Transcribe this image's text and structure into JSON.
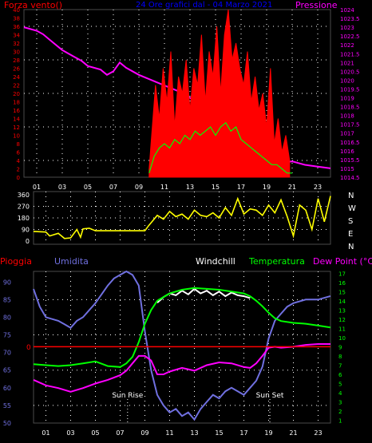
{
  "colors": {
    "background": "#000000",
    "grid": "#ffffff",
    "axis": "#4a4a4a",
    "wind_speed": "#ff0000",
    "wind_avg": "#00ff00",
    "pressure": "#ff00ff",
    "wind_dir": "#ffff00",
    "dew_point": "#ff00ff",
    "humidity": "#7070e0",
    "windchill": "#ffffff",
    "temperature": "#00ff00",
    "rain": "#ff0000",
    "title": "#0000ff"
  },
  "chart_data": [
    {
      "type": "line",
      "title": "24 Ore grafici dal - 04 Marzo 2021",
      "left_label": "Forza vento()",
      "right_label": "Pressione",
      "x_ticks": [
        "01",
        "03",
        "05",
        "07",
        "09",
        "11",
        "13",
        "15",
        "17",
        "19",
        "21",
        "23"
      ],
      "x_range": [
        0,
        24
      ],
      "y_left": {
        "ticks": [
          "0",
          "2",
          "4",
          "6",
          "8",
          "10",
          "12",
          "14",
          "16",
          "18",
          "20",
          "22",
          "24",
          "26",
          "28",
          "30",
          "32",
          "34",
          "36",
          "38",
          "40"
        ],
        "range": [
          0,
          40
        ]
      },
      "y_right": {
        "ticks": [
          "1014.5",
          "1015",
          "1015.5",
          "1016",
          "1016.5",
          "1017",
          "1017.5",
          "1018",
          "1018.5",
          "1019",
          "1019.5",
          "1020",
          "1020.5",
          "1021",
          "1021.5",
          "1022",
          "1022.5",
          "1023",
          "1023.5",
          "1024"
        ],
        "range": [
          1014.5,
          1024
        ]
      },
      "grid": true,
      "series": [
        {
          "key": "pressure",
          "axis": "right",
          "x": [
            0,
            1,
            1.5,
            2,
            3,
            4,
            4.5,
            5,
            6,
            6.5,
            7,
            7.5,
            8,
            9,
            10,
            11,
            12,
            13,
            14,
            15,
            16,
            17,
            18,
            19,
            20,
            21,
            22,
            23,
            24
          ],
          "y": [
            1023,
            1022.8,
            1022.6,
            1022.3,
            1021.7,
            1021.3,
            1021.1,
            1020.8,
            1020.6,
            1020.3,
            1020.5,
            1021,
            1020.7,
            1020.3,
            1020,
            1019.7,
            1019.4,
            1019,
            1018.5,
            1017.8,
            1017.2,
            1016.6,
            1016,
            1015.6,
            1015.3,
            1015.4,
            1015.2,
            1015.1,
            1015
          ]
        },
        {
          "key": "wind_speed",
          "axis": "left",
          "x": [
            9.8,
            10,
            10.3,
            10.6,
            10.9,
            11.2,
            11.5,
            11.8,
            12.1,
            12.4,
            12.7,
            13,
            13.3,
            13.6,
            13.9,
            14.2,
            14.5,
            14.8,
            15.1,
            15.4,
            15.7,
            16,
            16.3,
            16.6,
            16.9,
            17.2,
            17.5,
            17.8,
            18.1,
            18.4,
            18.7,
            19,
            19.3,
            19.6,
            19.9,
            20.2,
            20.5,
            20.8
          ],
          "y": [
            2,
            10,
            22,
            14,
            26,
            18,
            30,
            12,
            24,
            20,
            28,
            16,
            26,
            22,
            34,
            18,
            30,
            24,
            36,
            20,
            34,
            40,
            28,
            32,
            26,
            22,
            30,
            18,
            24,
            16,
            20,
            12,
            26,
            8,
            14,
            6,
            10,
            4
          ]
        },
        {
          "key": "wind_avg",
          "axis": "left",
          "x": [
            9.8,
            10.2,
            10.6,
            11,
            11.4,
            11.8,
            12.2,
            12.6,
            13,
            13.4,
            13.8,
            14.2,
            14.6,
            15,
            15.4,
            15.8,
            16.2,
            16.6,
            17,
            17.4,
            17.8,
            18.2,
            18.6,
            19,
            19.4,
            19.8,
            20.2,
            20.6,
            21
          ],
          "y": [
            1,
            5,
            7,
            8,
            7,
            9,
            8,
            10,
            9,
            11,
            10,
            11,
            12,
            10,
            12,
            13,
            11,
            12,
            9,
            8,
            7,
            6,
            5,
            4,
            3,
            3,
            2,
            1,
            1
          ]
        }
      ]
    },
    {
      "type": "line",
      "x_range": [
        0,
        24
      ],
      "y_ticks": [
        "0",
        "90",
        "180",
        "270",
        "360"
      ],
      "y_range": [
        0,
        360
      ],
      "direction_labels": [
        "N",
        "W",
        "S",
        "E",
        "N"
      ],
      "series": [
        {
          "key": "wind_dir",
          "x": [
            0,
            1,
            1.3,
            2,
            2.5,
            3,
            3.5,
            3.8,
            4,
            4.5,
            5,
            6,
            7,
            8,
            9,
            9.3,
            10,
            10.5,
            11,
            11.5,
            12,
            12.5,
            13,
            13.5,
            14,
            14.5,
            15,
            15.5,
            16,
            16.5,
            17,
            17.5,
            18,
            18.5,
            19,
            19.5,
            20,
            20.5,
            21,
            21.5,
            22,
            22.5,
            23,
            23.5,
            24
          ],
          "y": [
            75,
            70,
            40,
            60,
            20,
            25,
            90,
            30,
            95,
            100,
            80,
            80,
            80,
            80,
            80,
            120,
            200,
            170,
            230,
            190,
            210,
            170,
            240,
            200,
            190,
            220,
            180,
            260,
            200,
            330,
            210,
            250,
            240,
            200,
            280,
            220,
            320,
            190,
            40,
            280,
            240,
            90,
            330,
            150,
            350
          ]
        }
      ]
    },
    {
      "type": "line",
      "legend": [
        "Pioggia",
        "Umidita",
        "Windchill",
        "Temperatura",
        "Dew Point (°C)"
      ],
      "x_ticks": [
        "01",
        "03",
        "05",
        "07",
        "09",
        "11",
        "13",
        "15",
        "17",
        "19",
        "21",
        "23"
      ],
      "x_range": [
        0,
        24
      ],
      "y_left": {
        "ticks": [
          "50",
          "55",
          "60",
          "65",
          "70",
          "75",
          "80",
          "85",
          "90"
        ],
        "range": [
          50,
          93
        ]
      },
      "y_right": {
        "ticks": [
          "1",
          "2",
          "3",
          "4",
          "5",
          "6",
          "7",
          "8",
          "9",
          "10",
          "11",
          "12",
          "13",
          "14",
          "15",
          "16",
          "17"
        ],
        "range": [
          0.7,
          17.2
        ]
      },
      "rain_marker": "0",
      "annotations": [
        {
          "text": "Sun Rise",
          "x": 7.6
        },
        {
          "text": "Sun Set",
          "x": 19.1
        }
      ],
      "grid": true,
      "series": [
        {
          "key": "humidity",
          "axis": "left",
          "x": [
            0,
            0.5,
            1,
            2,
            2.5,
            3,
            3.5,
            4,
            5,
            6,
            6.5,
            7,
            7.5,
            8,
            8.5,
            9,
            9.5,
            10,
            10.5,
            11,
            11.5,
            12,
            12.5,
            13,
            13.5,
            14,
            14.5,
            15,
            15.5,
            16,
            16.5,
            17,
            17.5,
            18,
            18.5,
            19,
            19.5,
            20,
            20.5,
            21,
            22,
            23,
            24
          ],
          "y": [
            88,
            83,
            80,
            79,
            78,
            77,
            79,
            80,
            84,
            89,
            91,
            92,
            93,
            92,
            89,
            76,
            65,
            58,
            55,
            53,
            54,
            52,
            53,
            51,
            54,
            56,
            58,
            57,
            59,
            60,
            59,
            58,
            60,
            62,
            66,
            74,
            79,
            81,
            83,
            84,
            85,
            85,
            86
          ]
        },
        {
          "key": "windchill",
          "axis": "right",
          "x": [
            10,
            10.5,
            11,
            11.5,
            12,
            12.5,
            13,
            13.5,
            14,
            14.5,
            15,
            15.5,
            16,
            16.5,
            17,
            17.5
          ],
          "y": [
            13.8,
            14.4,
            14.8,
            14.6,
            15.1,
            14.7,
            15.3,
            14.8,
            15.1,
            14.6,
            15,
            14.5,
            14.9,
            14.6,
            14.5,
            14.3
          ]
        },
        {
          "key": "temperature",
          "axis": "right",
          "x": [
            0,
            1,
            2,
            3,
            4,
            5,
            6,
            7,
            7.5,
            8,
            8.5,
            9,
            9.5,
            10,
            11,
            12,
            13,
            14,
            15,
            16,
            17,
            17.5,
            18,
            18.5,
            19,
            19.5,
            20,
            21,
            22,
            23,
            24
          ],
          "y": [
            7.1,
            7,
            6.9,
            7,
            7.2,
            7.4,
            6.9,
            6.8,
            7.2,
            7.9,
            9.5,
            11.5,
            13,
            14,
            14.8,
            15.2,
            15.4,
            15.3,
            15.2,
            15,
            14.8,
            14.5,
            14,
            13.4,
            12.7,
            12.1,
            11.8,
            11.6,
            11.5,
            11.3,
            11.1
          ]
        },
        {
          "key": "dew_point",
          "axis": "right",
          "x": [
            0,
            1,
            2,
            3,
            4,
            5,
            6,
            7,
            7.5,
            8,
            8.5,
            9,
            9.5,
            10,
            10.5,
            11,
            12,
            13,
            14,
            15,
            16,
            17,
            17.5,
            18,
            18.5,
            19,
            19.5,
            20,
            21,
            22,
            23,
            24
          ],
          "y": [
            5.4,
            4.8,
            4.5,
            4.1,
            4.5,
            5,
            5.4,
            5.9,
            6.4,
            7.2,
            8,
            8,
            7.5,
            6,
            6,
            6.3,
            6.7,
            6.4,
            7,
            7.3,
            7.2,
            6.8,
            6.7,
            7.2,
            8,
            8.9,
            9,
            8.9,
            9,
            9.2,
            9.3,
            9.3
          ]
        },
        {
          "key": "rain",
          "axis": "right",
          "x": [
            0,
            24
          ],
          "y": [
            9,
            9
          ]
        }
      ]
    }
  ]
}
